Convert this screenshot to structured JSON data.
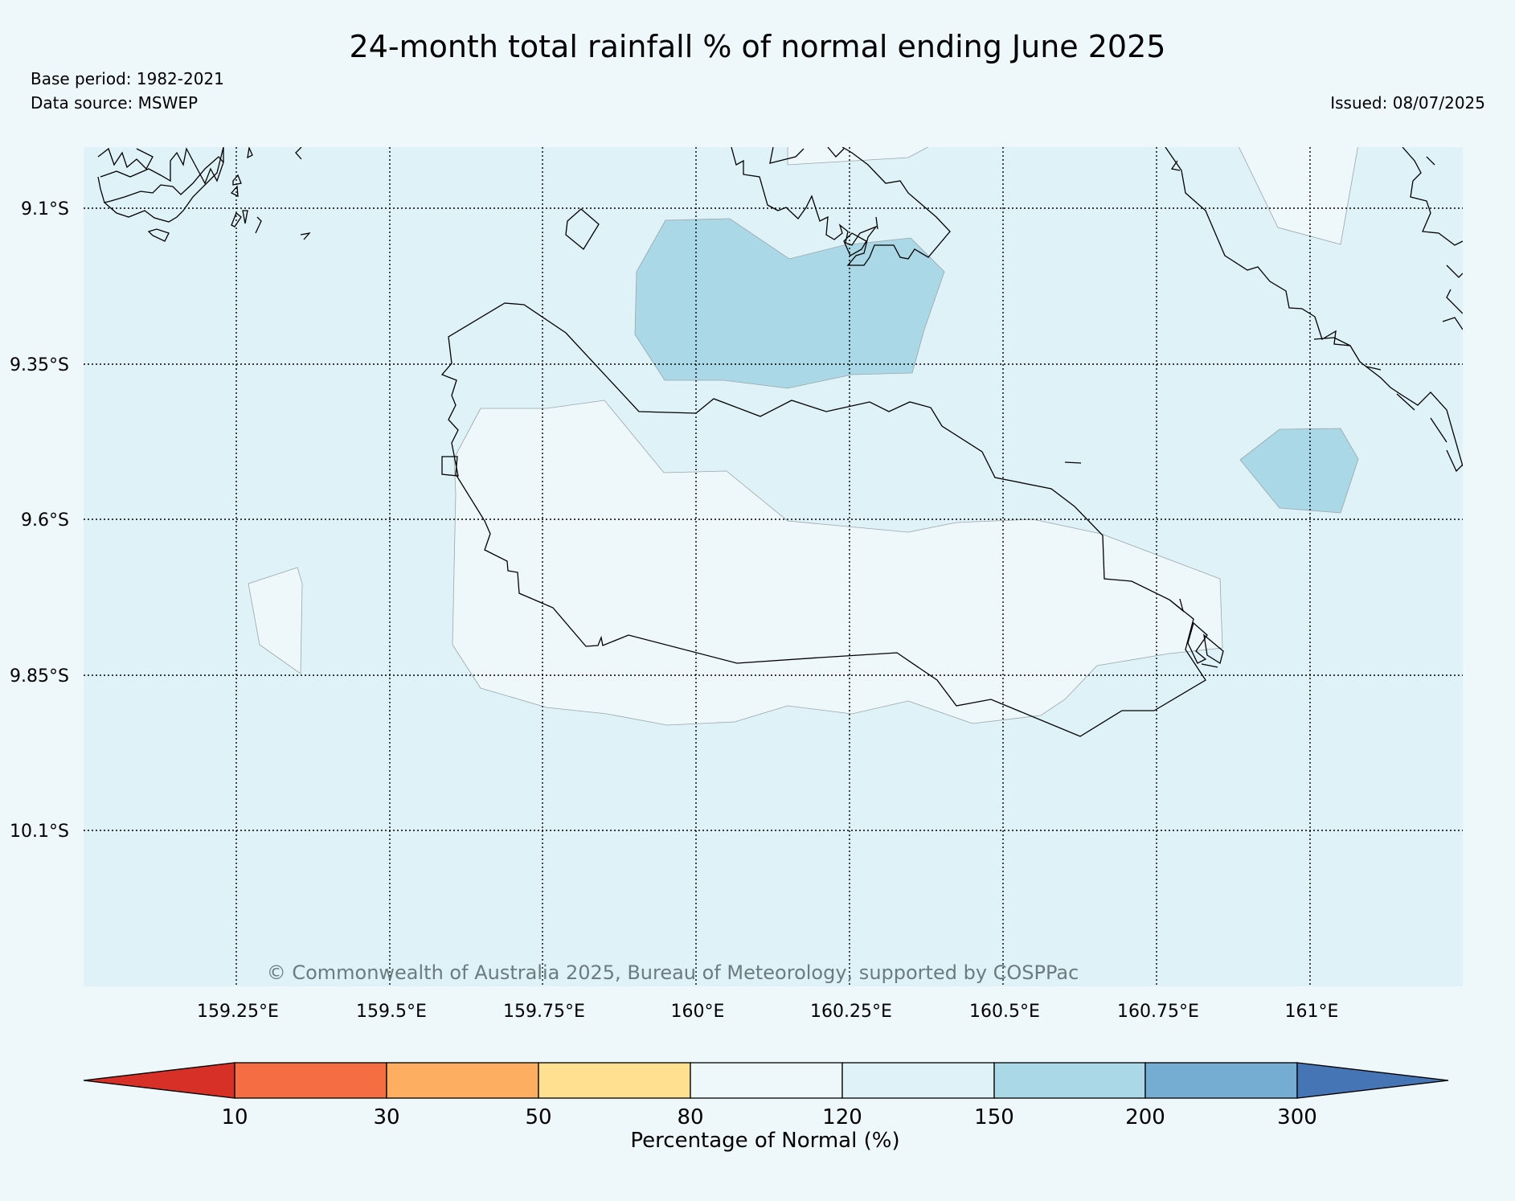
{
  "title": "24-month total rainfall % of normal ending June 2025",
  "base_period": "Base period: 1982-2021",
  "data_source": "Data source: MSWEP",
  "issued": "Issued: 08/07/2025",
  "copyright": "© Commonwealth of Australia 2025, Bureau of Meteorology, supported by COSPPac",
  "map": {
    "lat_labels": [
      "9.1°S",
      "9.35°S",
      "9.6°S",
      "9.85°S",
      "10.1°S"
    ],
    "lon_labels": [
      "159.25°E",
      "159.5°E",
      "159.75°E",
      "160°E",
      "160.25°E",
      "160.5°E",
      "160.75°E",
      "161°E"
    ],
    "background_category": "120-150",
    "colors": {
      "land_outline": "#000000",
      "grid": "#000000",
      "band_80_120": "#eef7f9",
      "band_120_150": "#dff2f7",
      "band_150_200": "#aad8e6"
    }
  },
  "colorbar": {
    "label": "Percentage of Normal (%)",
    "ticks": [
      "10",
      "30",
      "50",
      "80",
      "120",
      "150",
      "200",
      "300"
    ],
    "colors": [
      "#d73027",
      "#f46d43",
      "#fdae61",
      "#fee090",
      "#eef7f9",
      "#dff2f7",
      "#aad8e6",
      "#74add1",
      "#4575b4"
    ]
  }
}
